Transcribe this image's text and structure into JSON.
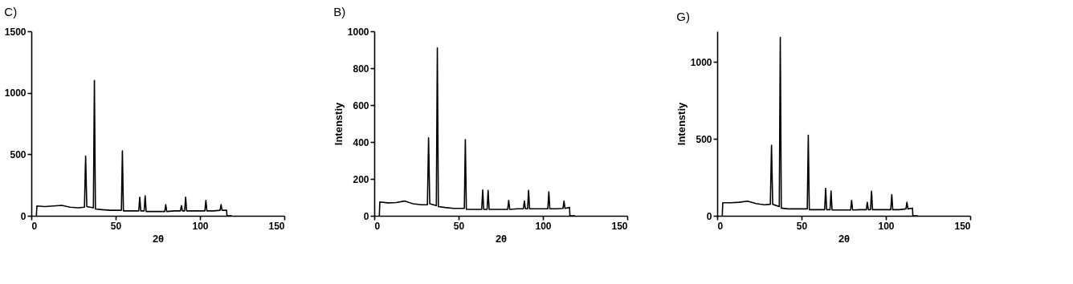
{
  "chart_data": [
    {
      "type": "line",
      "title": "C)",
      "xlabel": "2θ",
      "xlim": [
        0,
        150
      ],
      "xticks": [
        0,
        50,
        100,
        150
      ],
      "ylim": [
        0,
        1500
      ],
      "yticks": [
        0,
        500,
        1000,
        1500
      ],
      "grid": false,
      "marker": "none",
      "line_style": "solid",
      "x": [
        3,
        3.3,
        8,
        13,
        18,
        23,
        28,
        31.5,
        32.2,
        32.9,
        36.8,
        37.4,
        38,
        42,
        47,
        53.4,
        54,
        54.6,
        60,
        63.7,
        64.3,
        64.9,
        66.9,
        67.5,
        68.1,
        73,
        79.1,
        79.7,
        80.3,
        85,
        88.4,
        89,
        89.6,
        90.9,
        91.5,
        92.1,
        97,
        102.9,
        103.5,
        104.1,
        108,
        111.9,
        112.5,
        113.1,
        115.8,
        116,
        119
      ],
      "series": [
        {
          "color": "#000000",
          "values": [
            0,
            80,
            75,
            80,
            85,
            70,
            65,
            70,
            485,
            75,
            65,
            1100,
            55,
            50,
            45,
            45,
            528,
            40,
            40,
            40,
            152,
            40,
            40,
            163,
            35,
            35,
            35,
            91,
            35,
            40,
            40,
            83,
            40,
            40,
            152,
            40,
            40,
            40,
            126,
            40,
            40,
            45,
            91,
            45,
            45,
            0,
            0
          ]
        }
      ]
    },
    {
      "type": "line",
      "title": "B)",
      "xlabel": "2θ",
      "ylabel": "Intenstiy",
      "xlim": [
        0,
        150
      ],
      "xticks": [
        0,
        50,
        100,
        150
      ],
      "ylim": [
        0,
        1000
      ],
      "yticks": [
        0,
        200,
        400,
        600,
        800,
        1000
      ],
      "grid": false,
      "marker": "none",
      "line_style": "solid",
      "x": [
        3,
        3.3,
        8,
        13,
        18,
        23,
        28,
        31.5,
        32.2,
        32.9,
        36.8,
        37.4,
        38,
        42,
        47,
        53.4,
        54,
        54.6,
        60,
        63.7,
        64.3,
        64.9,
        66.9,
        67.5,
        68.1,
        73,
        79.1,
        79.7,
        80.3,
        85,
        88.4,
        89,
        89.6,
        90.9,
        91.5,
        92.1,
        97,
        102.9,
        103.5,
        104.1,
        108,
        111.9,
        112.5,
        113.1,
        115.8,
        116,
        119
      ],
      "series": [
        {
          "color": "#000000",
          "values": [
            0,
            75,
            70,
            72,
            80,
            65,
            60,
            60,
            423,
            65,
            55,
            910,
            50,
            45,
            40,
            40,
            413,
            35,
            35,
            35,
            140,
            35,
            35,
            138,
            35,
            35,
            35,
            84,
            35,
            38,
            38,
            80,
            38,
            38,
            138,
            38,
            38,
            38,
            130,
            38,
            38,
            40,
            80,
            40,
            45,
            0,
            0
          ]
        }
      ]
    },
    {
      "type": "line",
      "title": "G)",
      "xlabel": "2θ",
      "ylabel": "Intenstiy",
      "xlim": [
        0,
        150
      ],
      "xticks": [
        0,
        50,
        100,
        150
      ],
      "ylim": [
        0,
        1200
      ],
      "yticks": [
        0,
        500,
        1000
      ],
      "grid": false,
      "marker": "none",
      "line_style": "solid",
      "x": [
        3,
        3.3,
        8,
        13,
        18,
        23,
        28,
        31.5,
        32.2,
        32.9,
        36.8,
        37.4,
        38,
        42,
        47,
        53.4,
        54,
        54.6,
        60,
        63.7,
        64.3,
        64.9,
        66.9,
        67.5,
        68.1,
        73,
        79.1,
        79.7,
        80.3,
        85,
        88.4,
        89,
        89.6,
        90.9,
        91.5,
        92.1,
        97,
        102.9,
        103.5,
        104.1,
        108,
        111.9,
        112.5,
        113.1,
        115.8,
        116,
        119
      ],
      "series": [
        {
          "color": "#000000",
          "values": [
            0,
            85,
            85,
            88,
            95,
            80,
            72,
            75,
            459,
            75,
            60,
            1160,
            50,
            45,
            45,
            45,
            524,
            40,
            40,
            40,
            179,
            40,
            40,
            162,
            38,
            38,
            38,
            100,
            38,
            40,
            40,
            88,
            40,
            40,
            160,
            40,
            40,
            40,
            138,
            40,
            40,
            45,
            88,
            45,
            50,
            0,
            0
          ]
        }
      ]
    }
  ]
}
